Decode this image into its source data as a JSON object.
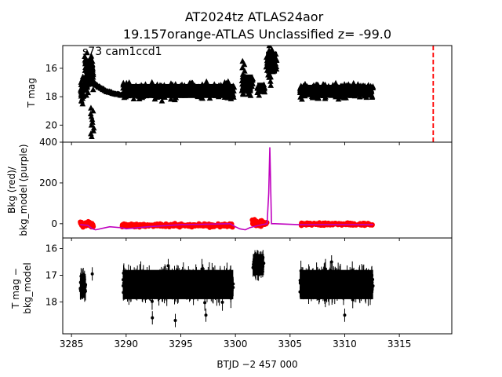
{
  "figure": {
    "title_line1": "AT2024tz  ATLAS24aor",
    "title_line2": "19.157orange-ATLAS Unclassified z= -99.0",
    "annotation": "s73 cam1ccd1",
    "xlabel": "BTJD −2 457 000"
  },
  "colors": {
    "data": "#000000",
    "bkg": "#ff0000",
    "bkg_model": "#bf00bf",
    "marker_line": "#ff0000"
  },
  "chart_data": [
    {
      "type": "scatter",
      "panel": "top",
      "ylabel": "T mag",
      "y_inverted": true,
      "xlim": [
        3284.2,
        3319.8
      ],
      "ylim": [
        21.2,
        14.4
      ],
      "yticks": [
        16,
        18,
        20
      ],
      "marker": "triangle",
      "vertical_line": {
        "x": 3318.1,
        "style": "dashed"
      },
      "segments": [
        {
          "x_start": 3285.8,
          "x_end": 3286.15,
          "y_center": 17.6,
          "y_spread": 1.0,
          "n": 30
        },
        {
          "x_start": 3286.2,
          "x_end": 3287.0,
          "y_center": 16.3,
          "y_spread": 1.8,
          "n": 40
        },
        {
          "x_start": 3289.7,
          "x_end": 3299.9,
          "y_center": 17.6,
          "y_spread": 0.9,
          "n": 400
        },
        {
          "x_start": 3300.6,
          "x_end": 3301.6,
          "y_center": 17.1,
          "y_spread": 1.2,
          "n": 40
        },
        {
          "x_start": 3302.0,
          "x_end": 3302.7,
          "y_center": 17.4,
          "y_spread": 0.7,
          "n": 30
        },
        {
          "x_start": 3302.8,
          "x_end": 3303.8,
          "y_center": 15.6,
          "y_spread": 1.4,
          "n": 40
        },
        {
          "x_start": 3305.9,
          "x_end": 3312.6,
          "y_center": 17.6,
          "y_spread": 0.8,
          "n": 300
        }
      ],
      "features": [
        {
          "x": 3286.0,
          "y_range": [
            16.6,
            18.5
          ]
        },
        {
          "x": 3286.3,
          "y_range": [
            14.9,
            17.5
          ]
        },
        {
          "x": 3286.9,
          "y_range": [
            18.8,
            20.8
          ]
        },
        {
          "x": 3286.5,
          "y_range": [
            16.0,
            17.9
          ]
        },
        {
          "x": 3300.7,
          "y_range": [
            15.5,
            17.8
          ]
        },
        {
          "x": 3303.2,
          "y_range": [
            14.4,
            17.2
          ]
        }
      ],
      "decay_curve": {
        "x": [
          3286.9,
          3287.5,
          3288.2,
          3289.0,
          3289.7
        ],
        "y": [
          16.9,
          17.3,
          17.6,
          17.8,
          17.9
        ]
      }
    },
    {
      "type": "line",
      "panel": "middle",
      "ylabel_line1": "Bkg (red)/",
      "ylabel_line2": "bkg_model (purple)",
      "xlim": [
        3284.2,
        3319.8
      ],
      "ylim": [
        -70,
        400
      ],
      "yticks": [
        0,
        200,
        400
      ],
      "bkg_model": {
        "x": [
          3285.8,
          3286.5,
          3286.9,
          3287.2,
          3288.5,
          3289.6,
          3290.0,
          3292.0,
          3295.0,
          3298.0,
          3299.5,
          3300.0,
          3300.4,
          3300.9,
          3301.3,
          3302.0,
          3302.9,
          3303.05,
          3303.15,
          3303.3,
          3303.6,
          3305.9,
          3309.0,
          3312.6
        ],
        "y": [
          -5,
          -8,
          -25,
          -30,
          -15,
          -20,
          -25,
          -15,
          -5,
          -2,
          0,
          -15,
          -25,
          -30,
          -20,
          -10,
          0,
          150,
          375,
          0,
          0,
          -5,
          -4,
          -5
        ]
      },
      "bkg_segments": [
        {
          "x_start": 3285.8,
          "x_end": 3287.0,
          "y_center": -3,
          "y_spread": 22,
          "n": 30
        },
        {
          "x_start": 3289.6,
          "x_end": 3299.8,
          "y_center": -8,
          "y_spread": 14,
          "n": 220
        },
        {
          "x_start": 3301.5,
          "x_end": 3302.9,
          "y_center": 5,
          "y_spread": 24,
          "n": 30
        },
        {
          "x_start": 3305.9,
          "x_end": 3312.6,
          "y_center": -2,
          "y_spread": 10,
          "n": 160
        }
      ]
    },
    {
      "type": "scatter",
      "panel": "bottom",
      "ylabel_line1": "T mag −",
      "ylabel_line2": "bkg_model",
      "y_inverted": true,
      "xlim": [
        3284.2,
        3319.8
      ],
      "ylim": [
        19.2,
        15.6
      ],
      "yticks": [
        16,
        17,
        18
      ],
      "xticks": [
        3285,
        3290,
        3295,
        3300,
        3305,
        3310,
        3315
      ],
      "marker": "dot",
      "errorbars": true,
      "segments": [
        {
          "x_start": 3285.8,
          "x_end": 3286.3,
          "y_center": 17.4,
          "y_spread": 0.9,
          "n": 40
        },
        {
          "x_start": 3289.7,
          "x_end": 3299.8,
          "y_center": 17.35,
          "y_spread": 1.1,
          "n": 450
        },
        {
          "x_start": 3301.6,
          "x_end": 3302.6,
          "y_center": 16.6,
          "y_spread": 0.8,
          "n": 60
        },
        {
          "x_start": 3305.9,
          "x_end": 3312.6,
          "y_center": 17.35,
          "y_spread": 1.1,
          "n": 350
        }
      ],
      "outliers": [
        {
          "x": 3286.9,
          "y": 16.95
        },
        {
          "x": 3308.8,
          "y": 16.5
        },
        {
          "x": 3292.4,
          "y": 18.6
        },
        {
          "x": 3294.5,
          "y": 18.7
        },
        {
          "x": 3297.3,
          "y": 18.5
        },
        {
          "x": 3310.0,
          "y": 18.5
        }
      ]
    }
  ]
}
